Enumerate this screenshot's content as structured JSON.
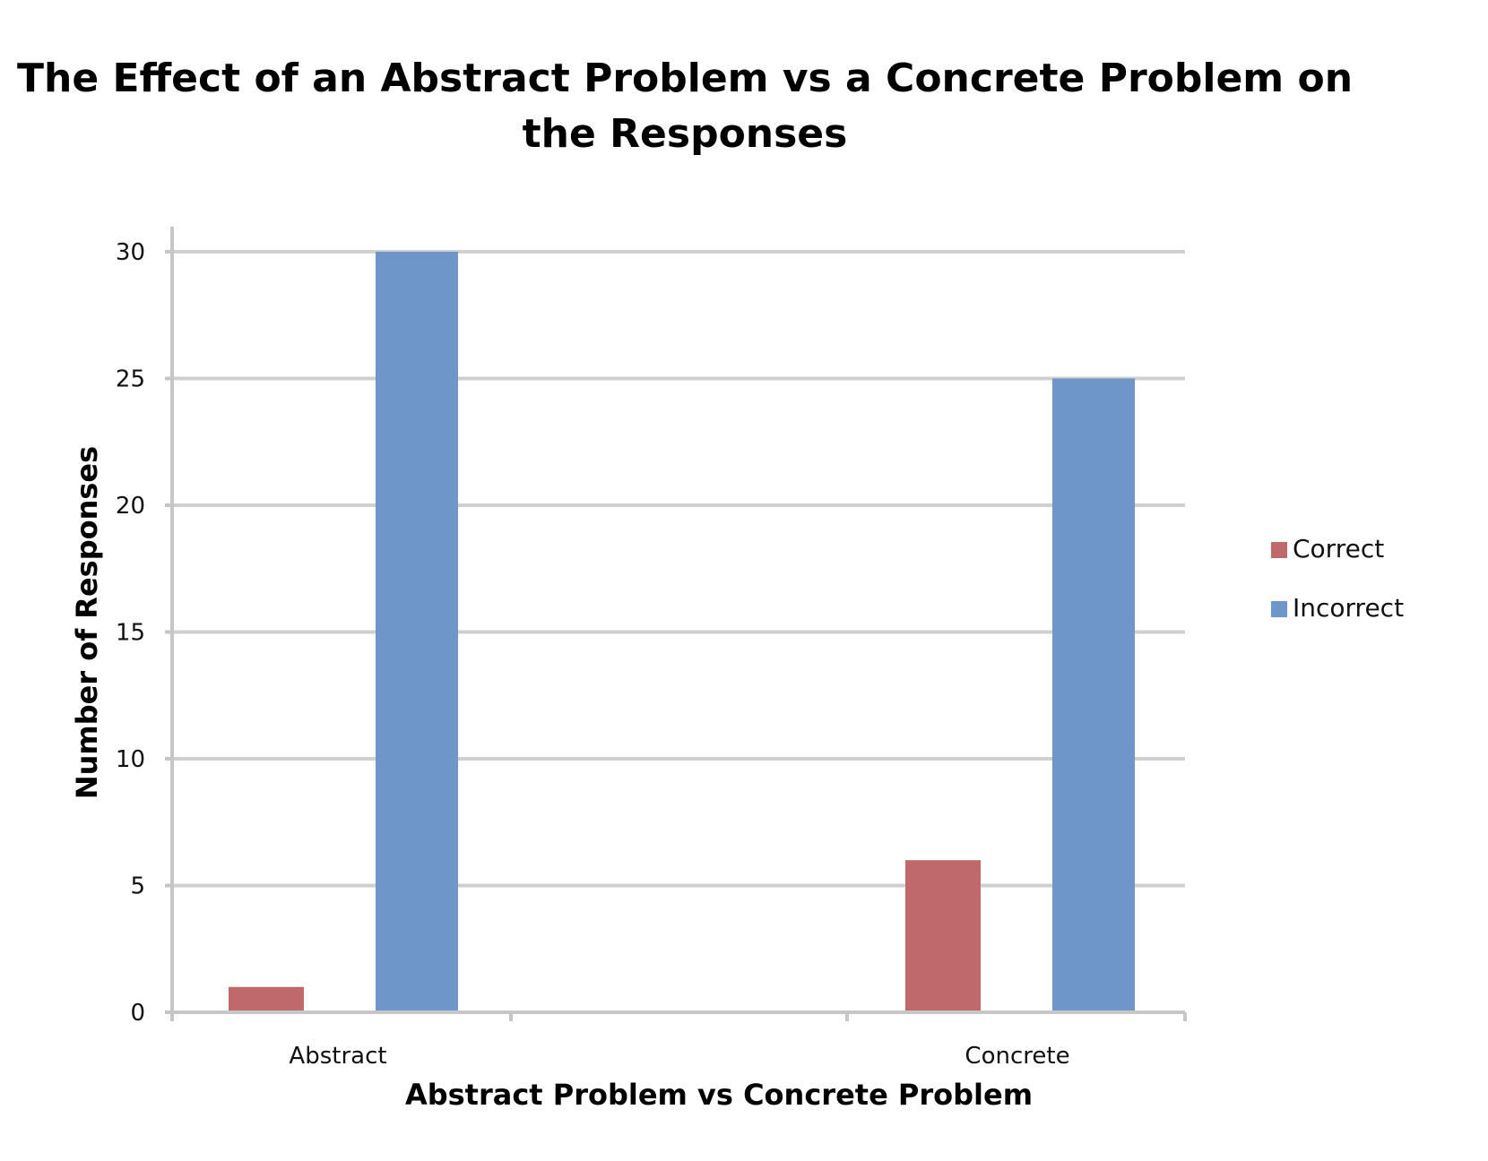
{
  "chart_data": {
    "type": "bar",
    "title": "The Effect of an Abstract Problem vs a Concrete Problem on the Responses",
    "title_lines": [
      "The Effect of an Abstract Problem vs a Concrete Problem on",
      "the Responses"
    ],
    "xlabel": "Abstract Problem vs Concrete Problem",
    "ylabel": "Number of Responses",
    "categories": [
      "Abstract",
      "Concrete"
    ],
    "series": [
      {
        "name": "Correct",
        "color": "#c0696a",
        "values": [
          1,
          6
        ]
      },
      {
        "name": "Incorrect",
        "color": "#6e96c9",
        "values": [
          30,
          25
        ]
      }
    ],
    "ylim": [
      0,
      30
    ],
    "yticks": [
      "0",
      "5",
      "10",
      "15",
      "20",
      "25",
      "30"
    ],
    "grid": true,
    "legend_position": "right"
  }
}
